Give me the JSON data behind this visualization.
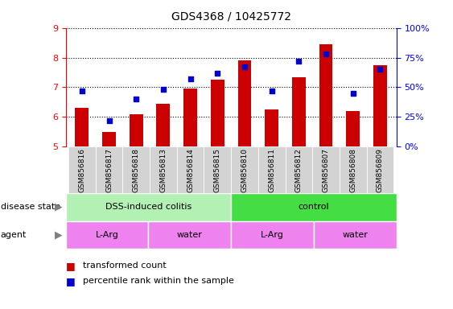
{
  "title": "GDS4368 / 10425772",
  "samples": [
    "GSM856816",
    "GSM856817",
    "GSM856818",
    "GSM856813",
    "GSM856814",
    "GSM856815",
    "GSM856810",
    "GSM856811",
    "GSM856812",
    "GSM856807",
    "GSM856808",
    "GSM856809"
  ],
  "transformed_count": [
    6.3,
    5.5,
    6.1,
    6.45,
    6.95,
    7.25,
    7.9,
    6.25,
    7.35,
    8.45,
    6.2,
    7.75
  ],
  "percentile_rank": [
    47,
    22,
    40,
    48,
    57,
    62,
    67,
    47,
    72,
    78,
    45,
    65
  ],
  "ylim_left": [
    5,
    9
  ],
  "ylim_right": [
    0,
    100
  ],
  "yticks_left": [
    5,
    6,
    7,
    8,
    9
  ],
  "yticks_right": [
    0,
    25,
    50,
    75,
    100
  ],
  "yticklabels_right": [
    "0%",
    "25%",
    "50%",
    "75%",
    "100%"
  ],
  "bar_color": "#cc0000",
  "dot_color": "#0000cc",
  "bar_bottom": 5,
  "disease_state_labels": [
    "DSS-induced colitis",
    "control"
  ],
  "agent_labels": [
    "L-Arg",
    "water",
    "L-Arg",
    "water"
  ],
  "disease_state_color_left": "#b3f0b3",
  "disease_state_color_right": "#44dd44",
  "agent_color": "#ee82ee",
  "row_label_disease": "disease state",
  "row_label_agent": "agent",
  "legend_bar_label": "transformed count",
  "legend_dot_label": "percentile rank within the sample",
  "background_color": "#ffffff",
  "label_area_color": "#d3d3d3",
  "n_samples": 12
}
